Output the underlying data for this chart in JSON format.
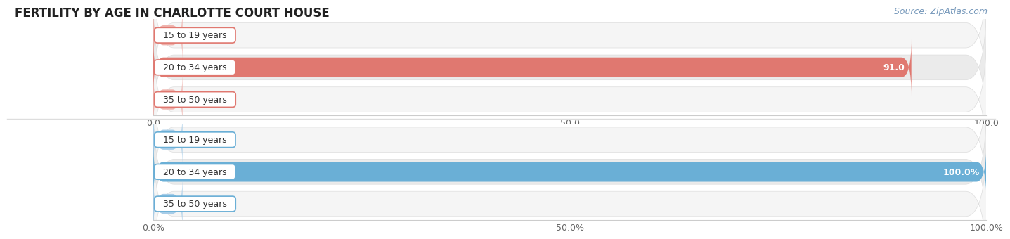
{
  "title": "FERTILITY BY AGE IN CHARLOTTE COURT HOUSE",
  "source": "Source: ZipAtlas.com",
  "top_chart": {
    "categories": [
      "15 to 19 years",
      "20 to 34 years",
      "35 to 50 years"
    ],
    "values": [
      0.0,
      91.0,
      0.0
    ],
    "xlim": [
      0,
      100
    ],
    "xticks": [
      0.0,
      50.0,
      100.0
    ],
    "xtick_labels": [
      "0.0",
      "50.0",
      "100.0"
    ],
    "bar_color": "#E07870",
    "bar_color_light": "#EEB0AA",
    "bg_row_odd": "#F5F5F5",
    "bg_row_even": "#EBEBEB",
    "bar_height": 0.62
  },
  "bottom_chart": {
    "categories": [
      "15 to 19 years",
      "20 to 34 years",
      "35 to 50 years"
    ],
    "values": [
      0.0,
      100.0,
      0.0
    ],
    "xlim": [
      0,
      100
    ],
    "xticks": [
      0.0,
      50.0,
      100.0
    ],
    "xtick_labels": [
      "0.0%",
      "50.0%",
      "100.0%"
    ],
    "bar_color": "#6AAFD6",
    "bar_color_light": "#A8CDE8",
    "bg_row_odd": "#F5F5F5",
    "bg_row_even": "#EBEBEB",
    "bar_height": 0.62
  },
  "title_fontsize": 12,
  "source_fontsize": 9,
  "tick_fontsize": 9,
  "label_fontsize": 9,
  "value_fontsize": 9,
  "bg_color": "#FFFFFF",
  "fig_width": 14.06,
  "fig_height": 3.3,
  "dpi": 100
}
